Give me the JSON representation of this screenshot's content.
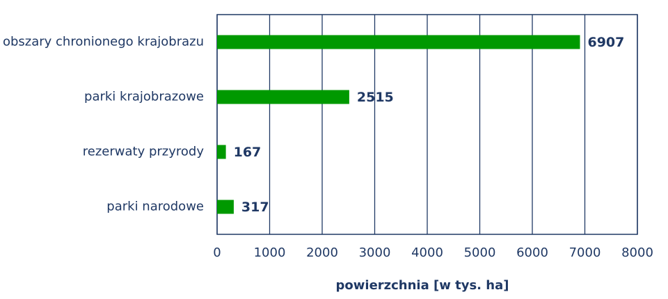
{
  "chart_data": {
    "type": "hbar",
    "x_label": "powierzchnia [w tys. ha]",
    "categories": [
      "obszary chronionego krajobrazu",
      "parki krajobrazowe",
      "rezerwaty przyrody",
      "parki narodowe"
    ],
    "values": [
      6907,
      2515,
      167,
      317
    ],
    "color": "#009900",
    "xlim": [
      0,
      8000
    ],
    "xticks": [
      0,
      1000,
      2000,
      3000,
      4000,
      5000,
      6000,
      7000,
      8000
    ],
    "grid": true
  }
}
